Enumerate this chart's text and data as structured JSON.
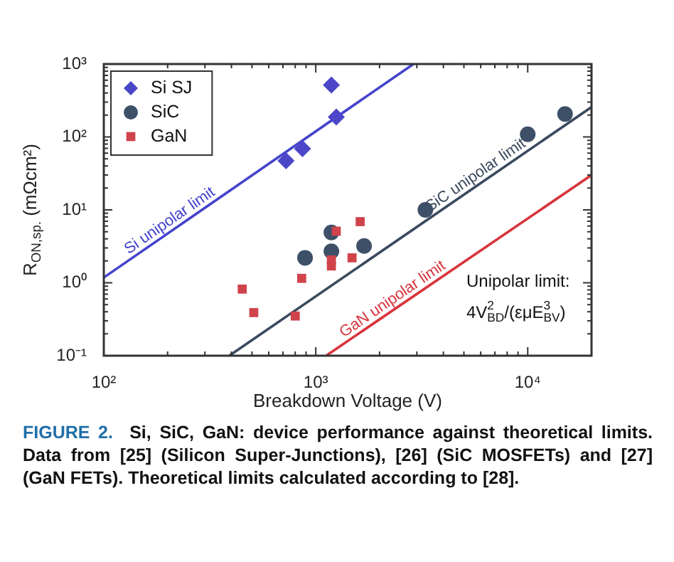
{
  "chart_data": {
    "type": "scatter",
    "xlabel": "Breakdown Voltage (V)",
    "ylabel": "R$_{ON,sp.}$ (mΩcm²)",
    "log": "xy",
    "legend": "top left",
    "xlim": [
      100,
      20000
    ],
    "ylim": [
      0.1,
      1000
    ],
    "xticks": [
      {
        "value": 100,
        "label": "10²"
      },
      {
        "value": 200,
        "label": null
      },
      {
        "value": 300,
        "label": null
      },
      {
        "value": 400,
        "label": null
      },
      {
        "value": 500,
        "label": null
      },
      {
        "value": 600,
        "label": null
      },
      {
        "value": 700,
        "label": null
      },
      {
        "value": 800,
        "label": null
      },
      {
        "value": 900,
        "label": null
      },
      {
        "value": 1000,
        "label": "10³"
      },
      {
        "value": 2000,
        "label": null
      },
      {
        "value": 3000,
        "label": null
      },
      {
        "value": 4000,
        "label": null
      },
      {
        "value": 5000,
        "label": null
      },
      {
        "value": 6000,
        "label": null
      },
      {
        "value": 7000,
        "label": null
      },
      {
        "value": 8000,
        "label": null
      },
      {
        "value": 9000,
        "label": null
      },
      {
        "value": 10000,
        "label": "10⁴"
      }
    ],
    "yticks": [
      {
        "value": 0.1,
        "label": "10⁻¹"
      },
      {
        "value": 0.2,
        "label": null
      },
      {
        "value": 0.3,
        "label": null
      },
      {
        "value": 0.4,
        "label": null
      },
      {
        "value": 0.5,
        "label": null
      },
      {
        "value": 0.6,
        "label": null
      },
      {
        "value": 0.7,
        "label": null
      },
      {
        "value": 0.8,
        "label": null
      },
      {
        "value": 0.9,
        "label": null
      },
      {
        "value": 1,
        "label": "10⁰"
      },
      {
        "value": 2,
        "label": null
      },
      {
        "value": 3,
        "label": null
      },
      {
        "value": 4,
        "label": null
      },
      {
        "value": 5,
        "label": null
      },
      {
        "value": 6,
        "label": null
      },
      {
        "value": 7,
        "label": null
      },
      {
        "value": 8,
        "label": null
      },
      {
        "value": 9,
        "label": null
      },
      {
        "value": 10,
        "label": "10¹"
      },
      {
        "value": 20,
        "label": null
      },
      {
        "value": 30,
        "label": null
      },
      {
        "value": 40,
        "label": null
      },
      {
        "value": 50,
        "label": null
      },
      {
        "value": 60,
        "label": null
      },
      {
        "value": 70,
        "label": null
      },
      {
        "value": 80,
        "label": null
      },
      {
        "value": 90,
        "label": null
      },
      {
        "value": 100,
        "label": "10²"
      },
      {
        "value": 200,
        "label": null
      },
      {
        "value": 300,
        "label": null
      },
      {
        "value": 400,
        "label": null
      },
      {
        "value": 500,
        "label": null
      },
      {
        "value": 600,
        "label": null
      },
      {
        "value": 700,
        "label": null
      },
      {
        "value": 800,
        "label": null
      },
      {
        "value": 900,
        "label": null
      },
      {
        "value": 1000,
        "label": "10³"
      }
    ],
    "series": [
      {
        "name": "Si unipolar limit",
        "type": "line",
        "color": "#4444cc",
        "line_style": "solid",
        "marker": "none",
        "x": [
          100,
          2890
        ],
        "values": [
          1.18,
          1000
        ]
      },
      {
        "name": "SiC unipolar limit",
        "type": "line",
        "color": "#3b4a5e",
        "line_style": "solid",
        "marker": "none",
        "x": [
          391,
          20000
        ],
        "values": [
          0.1,
          257
        ]
      },
      {
        "name": "GaN unipolar limit",
        "type": "line",
        "color": "#d8343c",
        "line_style": "solid",
        "marker": "none",
        "x": [
          1120,
          20000
        ],
        "values": [
          0.1,
          30
        ]
      },
      {
        "name": "Si SJ",
        "type": "scatter",
        "color": "#4b47c8",
        "marker": "diamond",
        "x": [
          724,
          866,
          1185,
          1250
        ],
        "values": [
          47,
          69,
          515,
          188
        ]
      },
      {
        "name": "SiC",
        "type": "scatter",
        "color": "#3d5068",
        "marker": "circle",
        "x": [
          890,
          1185,
          1185,
          1690,
          3290,
          10000,
          15000
        ],
        "values": [
          2.2,
          4.9,
          2.7,
          3.2,
          10,
          109,
          206
        ]
      },
      {
        "name": "GaN",
        "type": "scatter",
        "color": "#d0434b",
        "marker": "square",
        "x": [
          450,
          510,
          800,
          858,
          1185,
          1185,
          1250,
          1483,
          1620
        ],
        "values": [
          0.82,
          0.39,
          0.35,
          1.15,
          1.7,
          2.06,
          5.1,
          2.2,
          6.9
        ]
      }
    ],
    "annotations": [
      "Unipolar limit:",
      "4V$^{2}$$_{BD}$/(εμE$^{3}$$_{BV}$)",
      "FIGURE 2.  Si, SiC, GaN: device performance against theoretical limits. Data from [25] (Silicon Super-Junctions), [26] (SiC MOSFETs) and [27] (GaN FETs). Theoretical limits calculated according to [28]."
    ]
  }
}
